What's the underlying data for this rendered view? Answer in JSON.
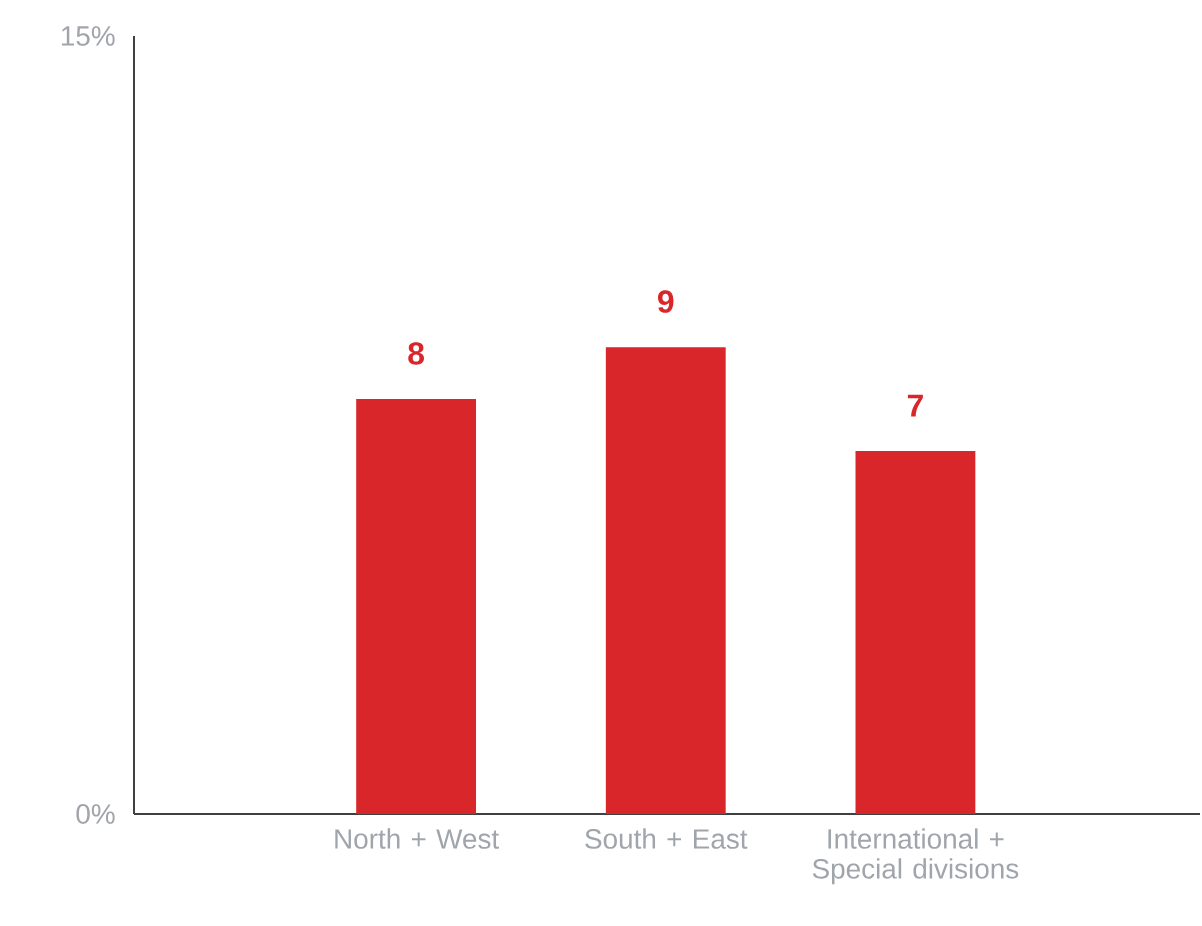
{
  "chart_data": {
    "type": "bar",
    "categories": [
      "North + West",
      "South + East",
      "International + Special divisions"
    ],
    "values": [
      8,
      9,
      7
    ],
    "color": "#d9262a",
    "ylim": [
      0,
      15
    ],
    "yticks": [
      {
        "value": 0,
        "label": "0%"
      },
      {
        "value": 15,
        "label": "15%"
      }
    ],
    "data_labels": true
  }
}
